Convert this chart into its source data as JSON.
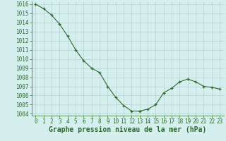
{
  "x": [
    0,
    1,
    2,
    3,
    4,
    5,
    6,
    7,
    8,
    9,
    10,
    11,
    12,
    13,
    14,
    15,
    16,
    17,
    18,
    19,
    20,
    21,
    22,
    23
  ],
  "y": [
    1016,
    1015.5,
    1014.8,
    1013.8,
    1012.5,
    1011.0,
    1009.8,
    1009.0,
    1008.5,
    1007.0,
    1005.8,
    1004.9,
    1004.3,
    1004.3,
    1004.5,
    1005.0,
    1006.3,
    1006.8,
    1007.5,
    1007.8,
    1007.5,
    1007.0,
    1006.9,
    1006.7
  ],
  "ylim_min": 1003.8,
  "ylim_max": 1016.3,
  "yticks": [
    1004,
    1005,
    1006,
    1007,
    1008,
    1009,
    1010,
    1011,
    1012,
    1013,
    1014,
    1015,
    1016
  ],
  "xticks": [
    0,
    1,
    2,
    3,
    4,
    5,
    6,
    7,
    8,
    9,
    10,
    11,
    12,
    13,
    14,
    15,
    16,
    17,
    18,
    19,
    20,
    21,
    22,
    23
  ],
  "xlabel": "Graphe pression niveau de la mer (hPa)",
  "line_color": "#2d6a2d",
  "marker": "+",
  "bg_color": "#d5efef",
  "grid_color": "#b0c8c8",
  "tick_label_fontsize": 5.5,
  "xlabel_fontsize": 7.0
}
